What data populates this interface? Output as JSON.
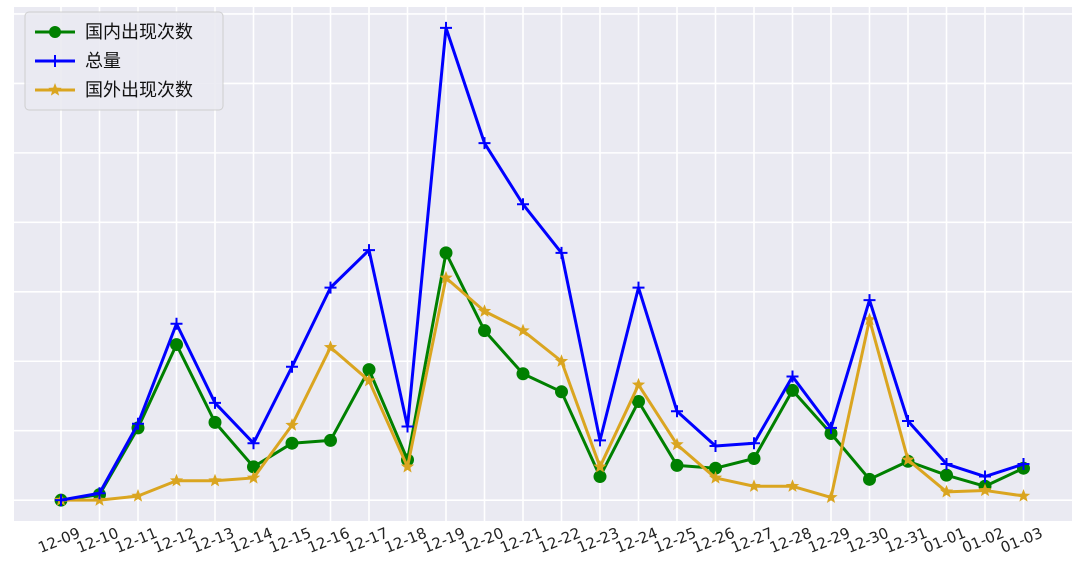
{
  "chart_data": {
    "type": "line",
    "title": "",
    "xlabel": "",
    "ylabel": "",
    "categories": [
      "12-09",
      "12-10",
      "12-11",
      "12-12",
      "12-13",
      "12-14",
      "12-15",
      "12-16",
      "12-17",
      "12-18",
      "12-19",
      "12-20",
      "12-21",
      "12-22",
      "12-23",
      "12-24",
      "12-25",
      "12-26",
      "12-27",
      "12-28",
      "12-29",
      "12-30",
      "12-31",
      "01-01",
      "01-02",
      "01-03"
    ],
    "ylim": [
      -15,
      355
    ],
    "grid": true,
    "legend_position": "top-left",
    "series": [
      {
        "name": "国内出现次数",
        "color": "#008000",
        "marker": "circle",
        "values": [
          0,
          4,
          52,
          112,
          56,
          24,
          41,
          43,
          94,
          29,
          178,
          122,
          91,
          78,
          17,
          71,
          25,
          23,
          30,
          79,
          48,
          15,
          28,
          18,
          10,
          23
        ]
      },
      {
        "name": "总量",
        "color": "#0000ff",
        "marker": "plus",
        "values": [
          0,
          5,
          55,
          127,
          70,
          41,
          96,
          153,
          180,
          53,
          340,
          257,
          213,
          178,
          43,
          153,
          64,
          39,
          41,
          89,
          52,
          144,
          57,
          26,
          17,
          26
        ]
      },
      {
        "name": "国外出现次数",
        "color": "#daa520",
        "marker": "star",
        "values": [
          0,
          0,
          3,
          14,
          14,
          16,
          54,
          110,
          86,
          24,
          160,
          136,
          122,
          100,
          24,
          83,
          40,
          16,
          10,
          10,
          2,
          130,
          29,
          6,
          7,
          3
        ]
      }
    ]
  }
}
